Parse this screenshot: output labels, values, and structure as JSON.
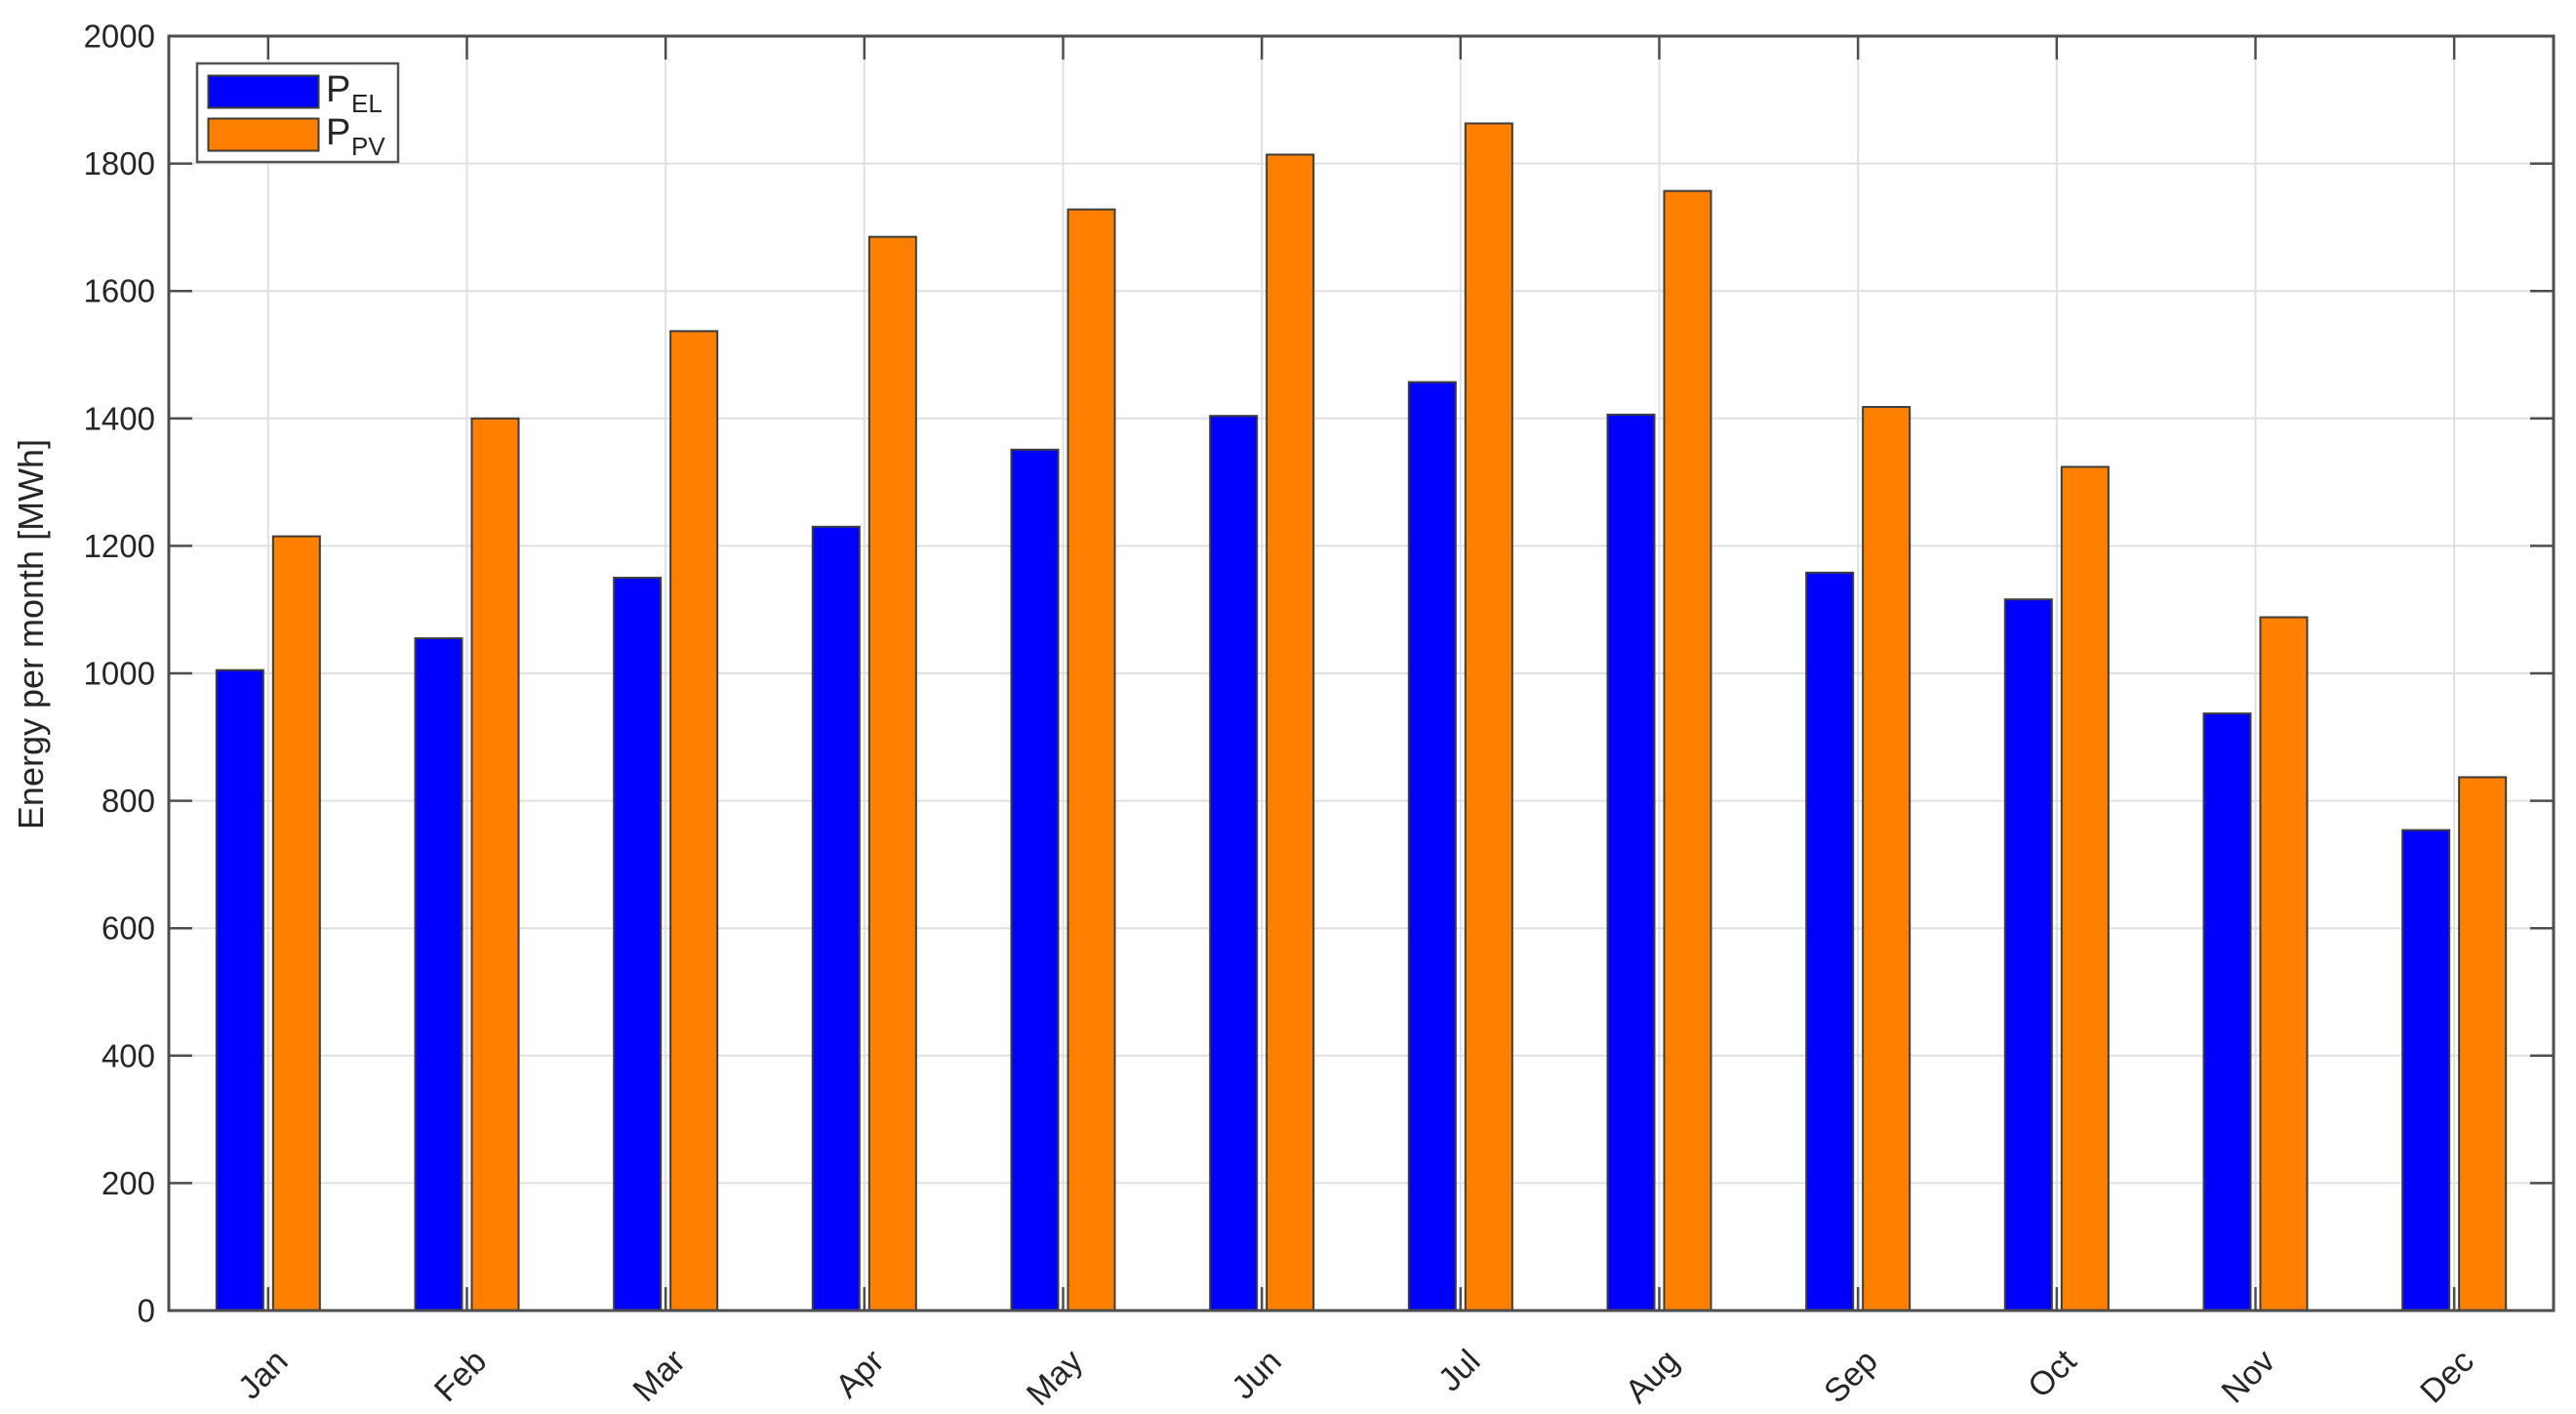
{
  "chart_data": {
    "type": "bar",
    "title": "",
    "xlabel": "",
    "ylabel": "Energy per month [MWh]",
    "categories": [
      "Jan",
      "Feb",
      "Mar",
      "Apr",
      "May",
      "Jun",
      "Jul",
      "Aug",
      "Sep",
      "Oct",
      "Nov",
      "Dec"
    ],
    "series": [
      {
        "name": "P_EL",
        "label_main": "P",
        "label_sub": "EL",
        "color": "#0000ff",
        "values": [
          1005,
          1055,
          1150,
          1230,
          1351,
          1404,
          1457,
          1406,
          1158,
          1116,
          937,
          754
        ]
      },
      {
        "name": "P_PV",
        "label_main": "P",
        "label_sub": "PV",
        "color": "#ff8000",
        "values": [
          1215,
          1400,
          1537,
          1685,
          1728,
          1814,
          1863,
          1757,
          1418,
          1324,
          1088,
          837
        ]
      }
    ],
    "ylim": [
      0,
      2000
    ],
    "ytick_step": 200,
    "yticks": [
      0,
      200,
      400,
      600,
      800,
      1000,
      1200,
      1400,
      1600,
      1800,
      2000
    ],
    "grid": true,
    "legend_position": "top-left",
    "axis_color": "#4d4d4d",
    "grid_color": "#e0e0e0",
    "bar_edge_color": "#3d3d3d",
    "tick_label_color": "#262626"
  }
}
